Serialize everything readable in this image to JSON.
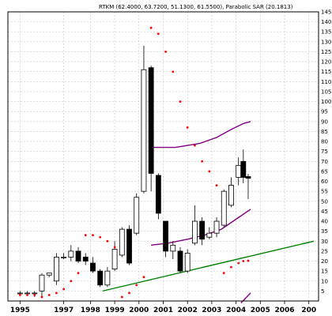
{
  "chart_data": {
    "type": "candlestick",
    "title": "RTKM (62.4000, 63.7200, 51.1300, 61.5500), Parabolic SAR (20.1813)",
    "ylim": [
      0,
      145
    ],
    "y_ticks": [
      5,
      10,
      15,
      20,
      25,
      30,
      35,
      40,
      45,
      50,
      55,
      60,
      65,
      70,
      75,
      80,
      85,
      90,
      95,
      100,
      105,
      110,
      115,
      120,
      125,
      130,
      135,
      140,
      145
    ],
    "x_tick_labels": [
      "1995",
      "1997",
      "1998",
      "1999",
      "2000",
      "2001",
      "2002",
      "2003",
      "2004",
      "2005",
      "2006",
      "200"
    ],
    "grid": true,
    "candles": [
      {
        "t": 1995.1,
        "o": 4,
        "h": 5,
        "l": 3,
        "c": 4
      },
      {
        "t": 1995.4,
        "o": 4,
        "h": 5,
        "l": 3,
        "c": 4
      },
      {
        "t": 1995.7,
        "o": 4,
        "h": 5,
        "l": 2,
        "c": 4
      },
      {
        "t": 1996.0,
        "o": 5,
        "h": 14,
        "l": 2,
        "c": 13
      },
      {
        "t": 1996.3,
        "o": 13,
        "h": 14,
        "l": 12,
        "c": 14
      },
      {
        "t": 1996.6,
        "o": 10,
        "h": 24,
        "l": 8,
        "c": 22
      },
      {
        "t": 1996.9,
        "o": 22,
        "h": 24,
        "l": 21,
        "c": 22
      },
      {
        "t": 1997.2,
        "o": 22,
        "h": 28,
        "l": 20,
        "c": 25
      },
      {
        "t": 1997.5,
        "o": 25,
        "h": 27,
        "l": 19,
        "c": 20
      },
      {
        "t": 1997.8,
        "o": 22,
        "h": 24,
        "l": 18,
        "c": 20
      },
      {
        "t": 1998.1,
        "o": 19,
        "h": 22,
        "l": 14,
        "c": 15
      },
      {
        "t": 1998.4,
        "o": 15,
        "h": 16,
        "l": 7,
        "c": 8
      },
      {
        "t": 1998.7,
        "o": 8,
        "h": 17,
        "l": 7,
        "c": 15
      },
      {
        "t": 1999.0,
        "o": 16,
        "h": 30,
        "l": 15,
        "c": 26
      },
      {
        "t": 1999.3,
        "o": 23,
        "h": 37,
        "l": 22,
        "c": 36
      },
      {
        "t": 1999.6,
        "o": 36,
        "h": 38,
        "l": 18,
        "c": 19
      },
      {
        "t": 1999.9,
        "o": 34,
        "h": 54,
        "l": 33,
        "c": 52
      },
      {
        "t": 2000.2,
        "o": 55,
        "h": 128,
        "l": 54,
        "c": 116
      },
      {
        "t": 2000.5,
        "o": 117,
        "h": 118,
        "l": 55,
        "c": 64
      },
      {
        "t": 2000.8,
        "o": 63,
        "h": 64,
        "l": 41,
        "c": 44
      },
      {
        "t": 2001.1,
        "o": 40,
        "h": 40,
        "l": 22,
        "c": 25
      },
      {
        "t": 2001.4,
        "o": 25,
        "h": 30,
        "l": 21,
        "c": 28
      },
      {
        "t": 2001.7,
        "o": 25,
        "h": 27,
        "l": 14,
        "c": 15
      },
      {
        "t": 2002.0,
        "o": 15,
        "h": 26,
        "l": 14,
        "c": 24
      },
      {
        "t": 2002.3,
        "o": 29,
        "h": 48,
        "l": 28,
        "c": 40
      },
      {
        "t": 2002.6,
        "o": 40,
        "h": 42,
        "l": 28,
        "c": 31
      },
      {
        "t": 2002.9,
        "o": 32,
        "h": 37,
        "l": 31,
        "c": 34
      },
      {
        "t": 2003.2,
        "o": 34,
        "h": 42,
        "l": 32,
        "c": 40
      },
      {
        "t": 2003.5,
        "o": 38,
        "h": 56,
        "l": 37,
        "c": 55
      },
      {
        "t": 2003.8,
        "o": 48,
        "h": 62,
        "l": 47,
        "c": 58
      },
      {
        "t": 2004.1,
        "o": 62,
        "h": 72,
        "l": 58,
        "c": 68
      },
      {
        "t": 2004.3,
        "o": 70,
        "h": 76,
        "l": 59,
        "c": 62
      },
      {
        "t": 2004.5,
        "o": 62.4,
        "h": 63.72,
        "l": 51.13,
        "c": 61.55
      }
    ],
    "sar": [
      {
        "t": 1995.1,
        "v": 3
      },
      {
        "t": 1995.4,
        "v": 3
      },
      {
        "t": 1995.7,
        "v": 3
      },
      {
        "t": 1996.0,
        "v": 2
      },
      {
        "t": 1996.3,
        "v": 3
      },
      {
        "t": 1996.6,
        "v": 4
      },
      {
        "t": 1996.9,
        "v": 6
      },
      {
        "t": 1997.2,
        "v": 10
      },
      {
        "t": 1997.5,
        "v": 14
      },
      {
        "t": 1997.8,
        "v": 33
      },
      {
        "t": 1998.1,
        "v": 33
      },
      {
        "t": 1998.4,
        "v": 32
      },
      {
        "t": 1998.7,
        "v": 30
      },
      {
        "t": 1999.0,
        "v": 27
      },
      {
        "t": 1999.3,
        "v": 2
      },
      {
        "t": 1999.6,
        "v": 4
      },
      {
        "t": 1999.9,
        "v": 8
      },
      {
        "t": 2000.2,
        "v": 12
      },
      {
        "t": 2000.5,
        "v": 137
      },
      {
        "t": 2000.8,
        "v": 134
      },
      {
        "t": 2001.1,
        "v": 125
      },
      {
        "t": 2001.4,
        "v": 115
      },
      {
        "t": 2001.7,
        "v": 100
      },
      {
        "t": 2002.0,
        "v": 87
      },
      {
        "t": 2002.3,
        "v": 78
      },
      {
        "t": 2002.6,
        "v": 70
      },
      {
        "t": 2002.9,
        "v": 65
      },
      {
        "t": 2003.2,
        "v": 58
      },
      {
        "t": 2003.5,
        "v": 14
      },
      {
        "t": 2003.8,
        "v": 17
      },
      {
        "t": 2004.1,
        "v": 19
      },
      {
        "t": 2004.3,
        "v": 20
      },
      {
        "t": 2004.5,
        "v": 20.18
      }
    ],
    "envelope_upper": [
      {
        "t": 2000.5,
        "v": 77
      },
      {
        "t": 2001.5,
        "v": 77
      },
      {
        "t": 2002.5,
        "v": 79
      },
      {
        "t": 2003.2,
        "v": 82
      },
      {
        "t": 2003.8,
        "v": 86
      },
      {
        "t": 2004.3,
        "v": 89
      },
      {
        "t": 2004.6,
        "v": 90
      }
    ],
    "envelope_lower": [
      {
        "t": 2000.5,
        "v": 28
      },
      {
        "t": 2001.2,
        "v": 29
      },
      {
        "t": 2002.0,
        "v": 31
      },
      {
        "t": 2002.7,
        "v": 33
      },
      {
        "t": 2003.4,
        "v": 36
      },
      {
        "t": 2004.0,
        "v": 41
      },
      {
        "t": 2004.6,
        "v": 46
      }
    ],
    "envelope_bottom": [
      {
        "t": 2004.2,
        "v": -1
      },
      {
        "t": 2004.6,
        "v": 4
      }
    ],
    "trendline": [
      {
        "t": 1998.5,
        "v": 5
      },
      {
        "t": 2007.2,
        "v": 30
      }
    ],
    "colors": {
      "candle_up": "#ffffff",
      "candle_down": "#000000",
      "sar": "#ff0000",
      "envelope": "#800080",
      "trendline": "#008000",
      "grid": "#c8c8c8"
    }
  }
}
